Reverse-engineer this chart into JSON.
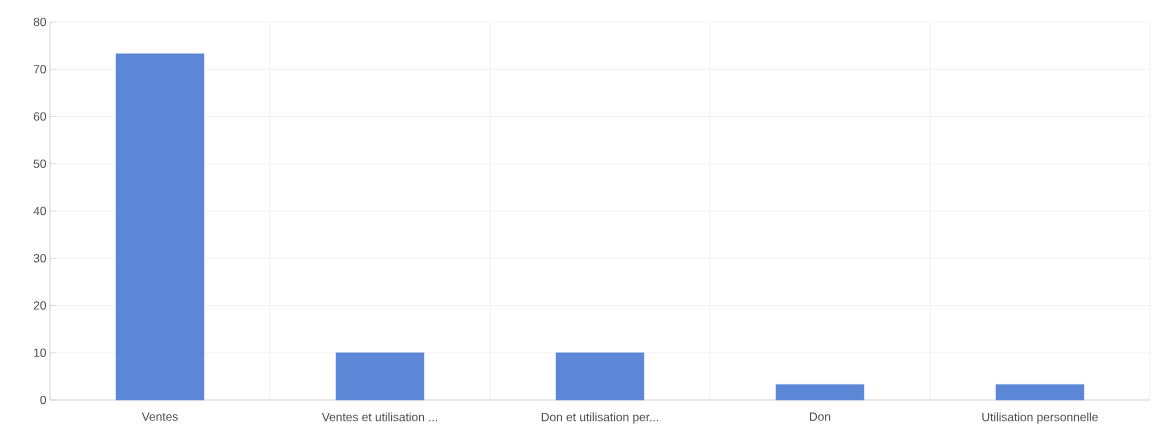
{
  "chart_data": {
    "type": "bar",
    "categories": [
      "Ventes",
      "Ventes et utilisation ...",
      "Don et utilisation per...",
      "Don",
      "Utilisation personnelle"
    ],
    "values": [
      73.3,
      10,
      10,
      3.3,
      3.3
    ],
    "color": "#5b87d6",
    "ylim": [
      0,
      80
    ],
    "yticks": [
      0,
      10,
      20,
      30,
      40,
      50,
      60,
      70,
      80
    ],
    "grid": true
  }
}
